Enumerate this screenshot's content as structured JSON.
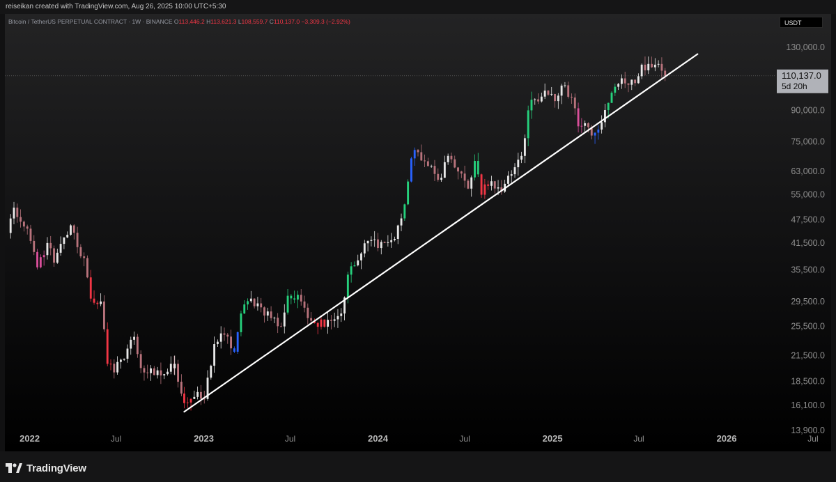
{
  "header": {
    "credit": "reiseikan created with TradingView.com, Aug 26, 2025 10:00 UTC+5:30"
  },
  "legend": {
    "symbol": "Bitcoin / TetherUS PERPETUAL CONTRACT · 1W · BINANCE",
    "open_label": "O",
    "open": "113,446.2",
    "high_label": "H",
    "high": "113,621.3",
    "low_label": "L",
    "low": "108,559.7",
    "close_label": "C",
    "close": "110,137.0",
    "change": "−3,309.3 (−2.92%)"
  },
  "currency_badge": "USDT",
  "price_label": {
    "value": "110,137.0",
    "countdown": "5d 20h"
  },
  "footer": {
    "brand": "TradingView"
  },
  "colors": {
    "up": "#e8e8e8",
    "down": "#b8737c",
    "accent_red": "#f23645",
    "line": "#ffffff"
  },
  "chart_data": {
    "type": "candlestick",
    "scale": "log",
    "interval": "1W",
    "yticks": [
      130000,
      110137,
      90000,
      75000,
      63000,
      55000,
      47500,
      41500,
      35500,
      29500,
      25500,
      21500,
      18500,
      16100,
      13900
    ],
    "ytick_labels": [
      "130,000.0",
      "110,137.0",
      "90,000.0",
      "75,000.0",
      "63,000.0",
      "55,000.0",
      "47,500.0",
      "41,500.0",
      "35,500.0",
      "29,500.0",
      "25,500.0",
      "21,500.0",
      "18,500.0",
      "16,100.0",
      "13,900.0"
    ],
    "xticks": [
      "2022",
      "Jul",
      "2023",
      "Jul",
      "2024",
      "Jul",
      "2025",
      "Jul",
      "2026",
      "Jul"
    ],
    "xtick_dates": [
      "2022-01-01",
      "2022-07-01",
      "2023-01-01",
      "2023-07-01",
      "2024-01-01",
      "2024-07-01",
      "2025-01-01",
      "2025-07-01",
      "2026-01-01",
      "2026-07-01"
    ],
    "x_range": [
      "2021-11-10",
      "2026-08-08"
    ],
    "y_range": [
      12300,
      158000
    ],
    "trendline": {
      "start": {
        "date": "2022-11-21",
        "price": 15500
      },
      "end": {
        "date": "2025-11-01",
        "price": 125000
      }
    },
    "current_price": 110137.0,
    "anchors": [
      [
        "2021-11-15",
        44000,
        "down",
        "#e9f2e9"
      ],
      [
        "2021-11-29",
        51000,
        "#b8737c"
      ],
      [
        "2021-12-13",
        47000,
        "#b8737c"
      ],
      [
        "2022-01-03",
        42000,
        "#b8737c"
      ],
      [
        "2022-01-17",
        36000,
        "#d94f9a"
      ],
      [
        "2022-02-07",
        41500,
        "#e8e8e8"
      ],
      [
        "2022-02-21",
        37000,
        "#b8737c"
      ],
      [
        "2022-03-28",
        46000,
        "#e8e8e8"
      ],
      [
        "2022-04-11",
        40500,
        "#b8737c"
      ],
      [
        "2022-04-25",
        38000,
        "#b8737c"
      ],
      [
        "2022-05-09",
        30000,
        "#f23645"
      ],
      [
        "2022-05-30",
        29500,
        "#b8737c"
      ],
      [
        "2022-06-13",
        20500,
        "#f23645"
      ],
      [
        "2022-06-27",
        19500,
        "#b8737c"
      ],
      [
        "2022-07-11",
        21000,
        "#e8e8e8"
      ],
      [
        "2022-08-08",
        24000,
        "#e8e8e8"
      ],
      [
        "2022-08-22",
        20000,
        "#b8737c"
      ],
      [
        "2022-09-19",
        19200,
        "#b8737c"
      ],
      [
        "2022-10-10",
        19300,
        "#e8e8e8"
      ],
      [
        "2022-11-01",
        20500,
        "#e8e8e8"
      ],
      [
        "2022-11-21",
        16300,
        "#f23645"
      ],
      [
        "2022-12-12",
        16900,
        "#e8e8e8"
      ],
      [
        "2023-01-02",
        16700,
        "#e8e8e8"
      ],
      [
        "2023-01-23",
        23000,
        "#e8e8e8"
      ],
      [
        "2023-02-13",
        24300,
        "#e8e8e8"
      ],
      [
        "2023-03-06",
        22000,
        "#2962ff"
      ],
      [
        "2023-03-20",
        27500,
        "#26d07c"
      ],
      [
        "2023-04-10",
        30000,
        "#e8e8e8"
      ],
      [
        "2023-05-01",
        28500,
        "#b8737c"
      ],
      [
        "2023-06-12",
        25500,
        "#b8737c"
      ],
      [
        "2023-06-26",
        30500,
        "#26d07c"
      ],
      [
        "2023-07-24",
        29500,
        "#e8e8e8"
      ],
      [
        "2023-08-21",
        26000,
        "#f23645"
      ],
      [
        "2023-09-18",
        26500,
        "#e8e8e8"
      ],
      [
        "2023-10-16",
        27500,
        "#e8e8e8"
      ],
      [
        "2023-10-30",
        34500,
        "#26d07c"
      ],
      [
        "2023-11-20",
        37500,
        "#e8e8e8"
      ],
      [
        "2023-12-11",
        42000,
        "#e8e8e8"
      ],
      [
        "2024-01-15",
        41500,
        "#b8737c"
      ],
      [
        "2024-02-05",
        42500,
        "#e8e8e8"
      ],
      [
        "2024-02-26",
        52000,
        "#26d07c"
      ],
      [
        "2024-03-11",
        68000,
        "#2962ff"
      ],
      [
        "2024-03-25",
        70500,
        "#e8e8e8"
      ],
      [
        "2024-04-15",
        65000,
        "#b8737c"
      ],
      [
        "2024-05-06",
        60000,
        "#b8737c"
      ],
      [
        "2024-05-27",
        69000,
        "#e8e8e8"
      ],
      [
        "2024-06-17",
        63000,
        "#b8737c"
      ],
      [
        "2024-07-08",
        57000,
        "#b8737c"
      ],
      [
        "2024-07-22",
        67000,
        "#26d07c"
      ],
      [
        "2024-08-05",
        55000,
        "#f23645"
      ],
      [
        "2024-08-26",
        59500,
        "#e8e8e8"
      ],
      [
        "2024-09-16",
        56000,
        "#b8737c"
      ],
      [
        "2024-10-07",
        62000,
        "#e8e8e8"
      ],
      [
        "2024-10-28",
        69000,
        "#e8e8e8"
      ],
      [
        "2024-11-11",
        90000,
        "#26d07c"
      ],
      [
        "2024-11-25",
        96000,
        "#e8e8e8"
      ],
      [
        "2024-12-16",
        101000,
        "#e8e8e8"
      ],
      [
        "2025-01-06",
        95000,
        "#b8737c"
      ],
      [
        "2025-01-20",
        104000,
        "#e8e8e8"
      ],
      [
        "2025-02-10",
        97000,
        "#b8737c"
      ],
      [
        "2025-02-24",
        82000,
        "#d94f9a"
      ],
      [
        "2025-03-10",
        83500,
        "#b8737c"
      ],
      [
        "2025-03-31",
        79000,
        "#2962ff"
      ],
      [
        "2025-04-14",
        84000,
        "#e8e8e8"
      ],
      [
        "2025-04-28",
        94000,
        "#26d07c"
      ],
      [
        "2025-05-19",
        105000,
        "#e8e8e8"
      ],
      [
        "2025-06-09",
        104500,
        "#e8e8e8"
      ],
      [
        "2025-06-23",
        105500,
        "#b8737c"
      ],
      [
        "2025-07-07",
        117500,
        "#e8e8e8"
      ],
      [
        "2025-07-21",
        118000,
        "#b8737c"
      ],
      [
        "2025-08-04",
        117500,
        "#e8e8e8"
      ],
      [
        "2025-08-11",
        118000,
        "#b8737c"
      ],
      [
        "2025-08-18",
        113446.2,
        "#b8737c"
      ],
      [
        "2025-08-25",
        110137.0,
        "#b8737c"
      ]
    ]
  }
}
